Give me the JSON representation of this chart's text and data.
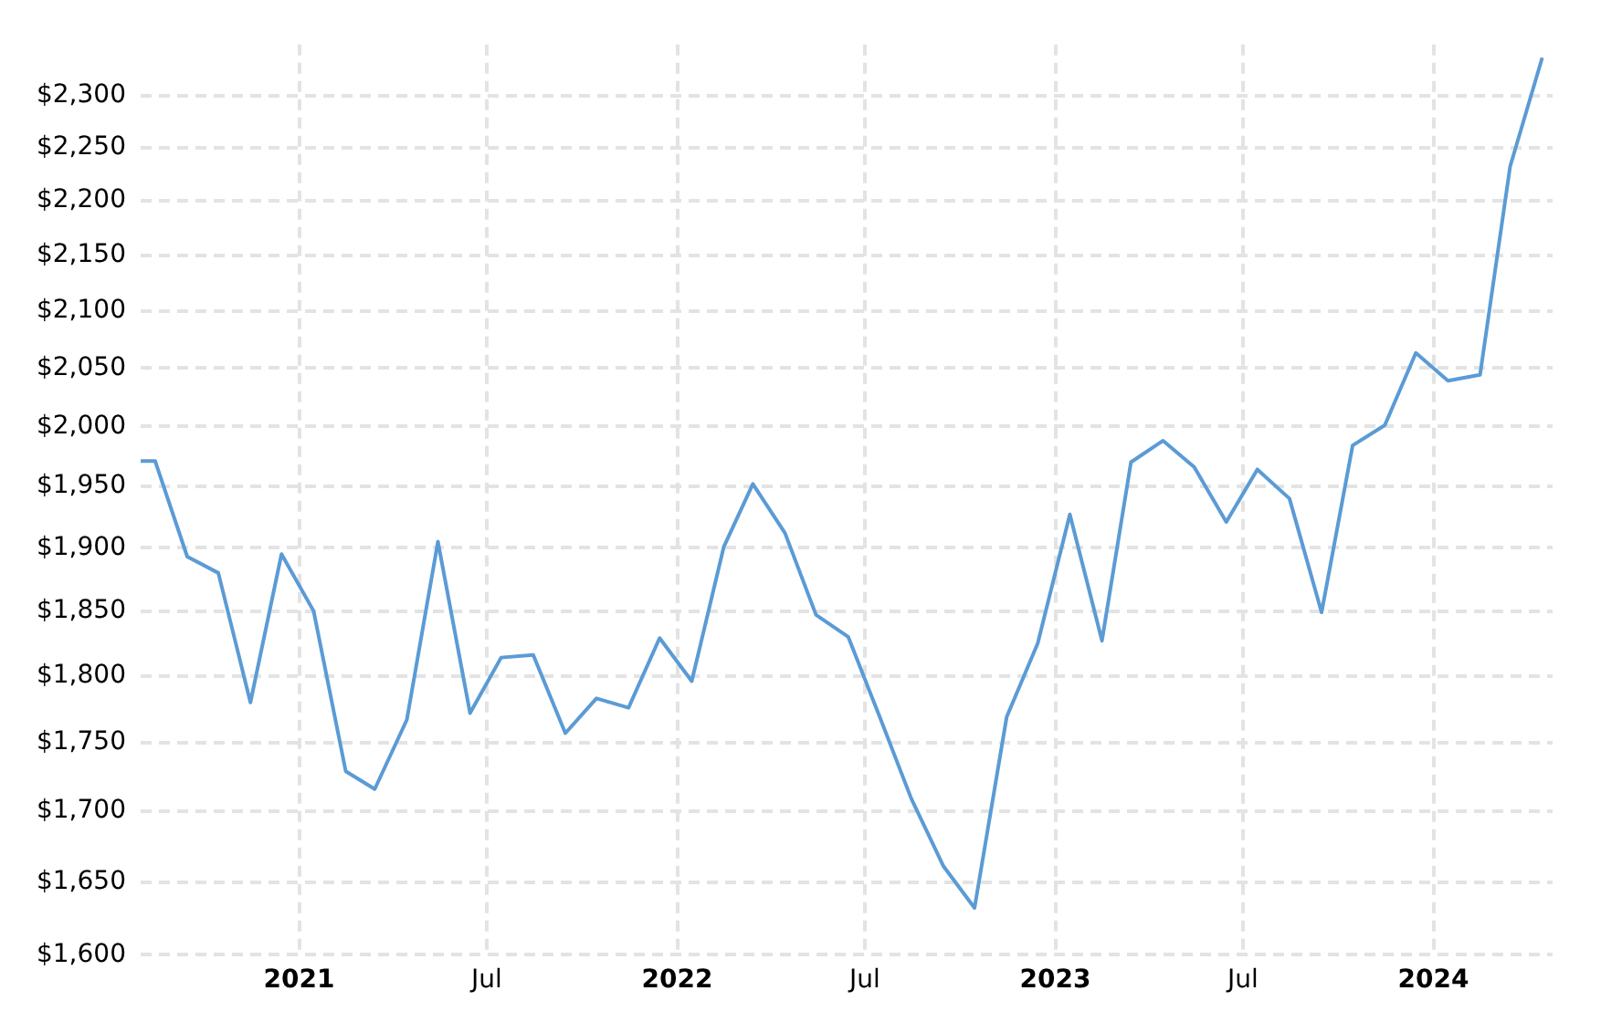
{
  "chart_data": {
    "type": "line",
    "log": "y",
    "grid": true,
    "legend": false,
    "marker": "none",
    "line_style": "solid",
    "x": [
      "2020-08-01",
      "2020-08-15",
      "2020-09-15",
      "2020-10-15",
      "2020-11-15",
      "2020-12-15",
      "2021-01-15",
      "2021-02-15",
      "2021-03-15",
      "2021-04-15",
      "2021-05-15",
      "2021-06-15",
      "2021-07-15",
      "2021-08-15",
      "2021-09-15",
      "2021-10-15",
      "2021-11-15",
      "2021-12-15",
      "2022-01-15",
      "2022-02-15",
      "2022-03-15",
      "2022-04-15",
      "2022-05-15",
      "2022-06-15",
      "2022-07-15",
      "2022-08-15",
      "2022-09-15",
      "2022-10-15",
      "2022-11-15",
      "2022-12-15",
      "2023-01-15",
      "2023-02-15",
      "2023-03-15",
      "2023-04-15",
      "2023-05-15",
      "2023-06-15",
      "2023-07-15",
      "2023-08-15",
      "2023-09-15",
      "2023-10-15",
      "2023-11-15",
      "2023-12-15",
      "2024-01-15",
      "2024-02-15",
      "2024-03-15",
      "2024-04-15"
    ],
    "series": [
      {
        "color": "#5b9bd5",
        "values": [
          1971,
          1971,
          1893,
          1880,
          1780,
          1895,
          1850,
          1729,
          1716,
          1767,
          1905,
          1772,
          1814,
          1816,
          1757,
          1783,
          1776,
          1829,
          1796,
          1901,
          1952,
          1912,
          1847,
          1830,
          1770,
          1709,
          1661,
          1632,
          1769,
          1825,
          1927,
          1827,
          1970,
          1988,
          1966,
          1921,
          1964,
          1940,
          1849,
          1984,
          2001,
          2063,
          2039,
          2044,
          2232,
          2337
        ]
      }
    ],
    "xlim": [
      "2020-08-01",
      "2024-04-25"
    ],
    "xticks": [
      {
        "value": "2021-01-01",
        "label": "2021"
      },
      {
        "value": "2021-07-01",
        "label": "Jul"
      },
      {
        "value": "2022-01-01",
        "label": "2022"
      },
      {
        "value": "2022-07-01",
        "label": "Jul"
      },
      {
        "value": "2023-01-01",
        "label": "2023"
      },
      {
        "value": "2023-07-01",
        "label": "Jul"
      },
      {
        "value": "2024-01-01",
        "label": "2024"
      }
    ],
    "ylim": [
      1600,
      2350
    ],
    "yticks": [
      {
        "value": 1600,
        "label": "$1,600"
      },
      {
        "value": 1650,
        "label": "$1,650"
      },
      {
        "value": 1700,
        "label": "$1,700"
      },
      {
        "value": 1750,
        "label": "$1,750"
      },
      {
        "value": 1800,
        "label": "$1,800"
      },
      {
        "value": 1850,
        "label": "$1,850"
      },
      {
        "value": 1900,
        "label": "$1,900"
      },
      {
        "value": 1950,
        "label": "$1,950"
      },
      {
        "value": 2000,
        "label": "$2,000"
      },
      {
        "value": 2050,
        "label": "$2,050"
      },
      {
        "value": 2100,
        "label": "$2,100"
      },
      {
        "value": 2150,
        "label": "$2,150"
      },
      {
        "value": 2200,
        "label": "$2,200"
      },
      {
        "value": 2250,
        "label": "$2,250"
      },
      {
        "value": 2300,
        "label": "$2,300"
      }
    ]
  }
}
